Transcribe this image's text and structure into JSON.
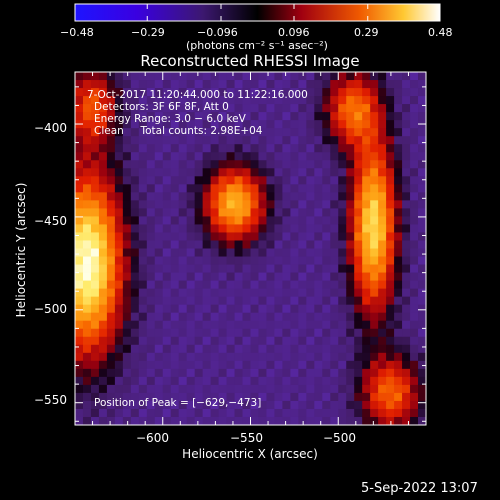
{
  "chart_data": {
    "type": "heatmap",
    "title": "Reconstructed RHESSI Image",
    "xlabel": "Heliocentric X (arcsec)",
    "ylabel": "Heliocentric Y (arcsec)",
    "xlim": [
      -650,
      -450
    ],
    "ylim": [
      -562,
      -372
    ],
    "x_ticks": [
      -600,
      -550,
      -500
    ],
    "y_ticks": [
      -400,
      -450,
      -500,
      -550
    ],
    "x_tick_labels": [
      "−600",
      "−550",
      "−500"
    ],
    "y_tick_labels": [
      "−400",
      "−450",
      "−500",
      "−550"
    ],
    "colorbar": {
      "range": [
        -0.48,
        0.48
      ],
      "tick_values": [
        -0.48,
        -0.29,
        -0.096,
        0.096,
        0.29,
        0.48
      ],
      "tick_labels": [
        "−0.48",
        "−0.29",
        "−0.096",
        "0.096",
        "0.29",
        "0.48"
      ],
      "unit_label": "(photons cm⁻² s⁻¹ asec⁻²)"
    },
    "annotations": {
      "time_range": "7‑Oct‑2017 11:20:44.000 to 11:22:16.000",
      "detectors": "Detectors: 3F 6F 8F, Att 0",
      "energy_range": "Energy Range: 3.0 − 6.0 keV",
      "clean_counts": "Clean     Total counts: 2.98E+04",
      "peak_position": "Position of Peak = [−629,−473]"
    },
    "sources": [
      {
        "x": -643,
        "y": -475,
        "intensity": 0.48,
        "sigma_x": 14,
        "sigma_y": 34
      },
      {
        "x": -559,
        "y": -443,
        "intensity": 0.34,
        "sigma_x": 12,
        "sigma_y": 14
      },
      {
        "x": -480,
        "y": -455,
        "intensity": 0.4,
        "sigma_x": 9,
        "sigma_y": 32
      },
      {
        "x": -492,
        "y": -392,
        "intensity": 0.22,
        "sigma_x": 11,
        "sigma_y": 14
      },
      {
        "x": -470,
        "y": -545,
        "intensity": 0.22,
        "sigma_x": 12,
        "sigma_y": 14
      },
      {
        "x": -640,
        "y": -390,
        "intensity": 0.18,
        "sigma_x": 10,
        "sigma_y": 14
      }
    ],
    "peak": {
      "x": -629,
      "y": -473
    }
  },
  "footer": {
    "date": "5‑Sep‑2022 13:07"
  }
}
